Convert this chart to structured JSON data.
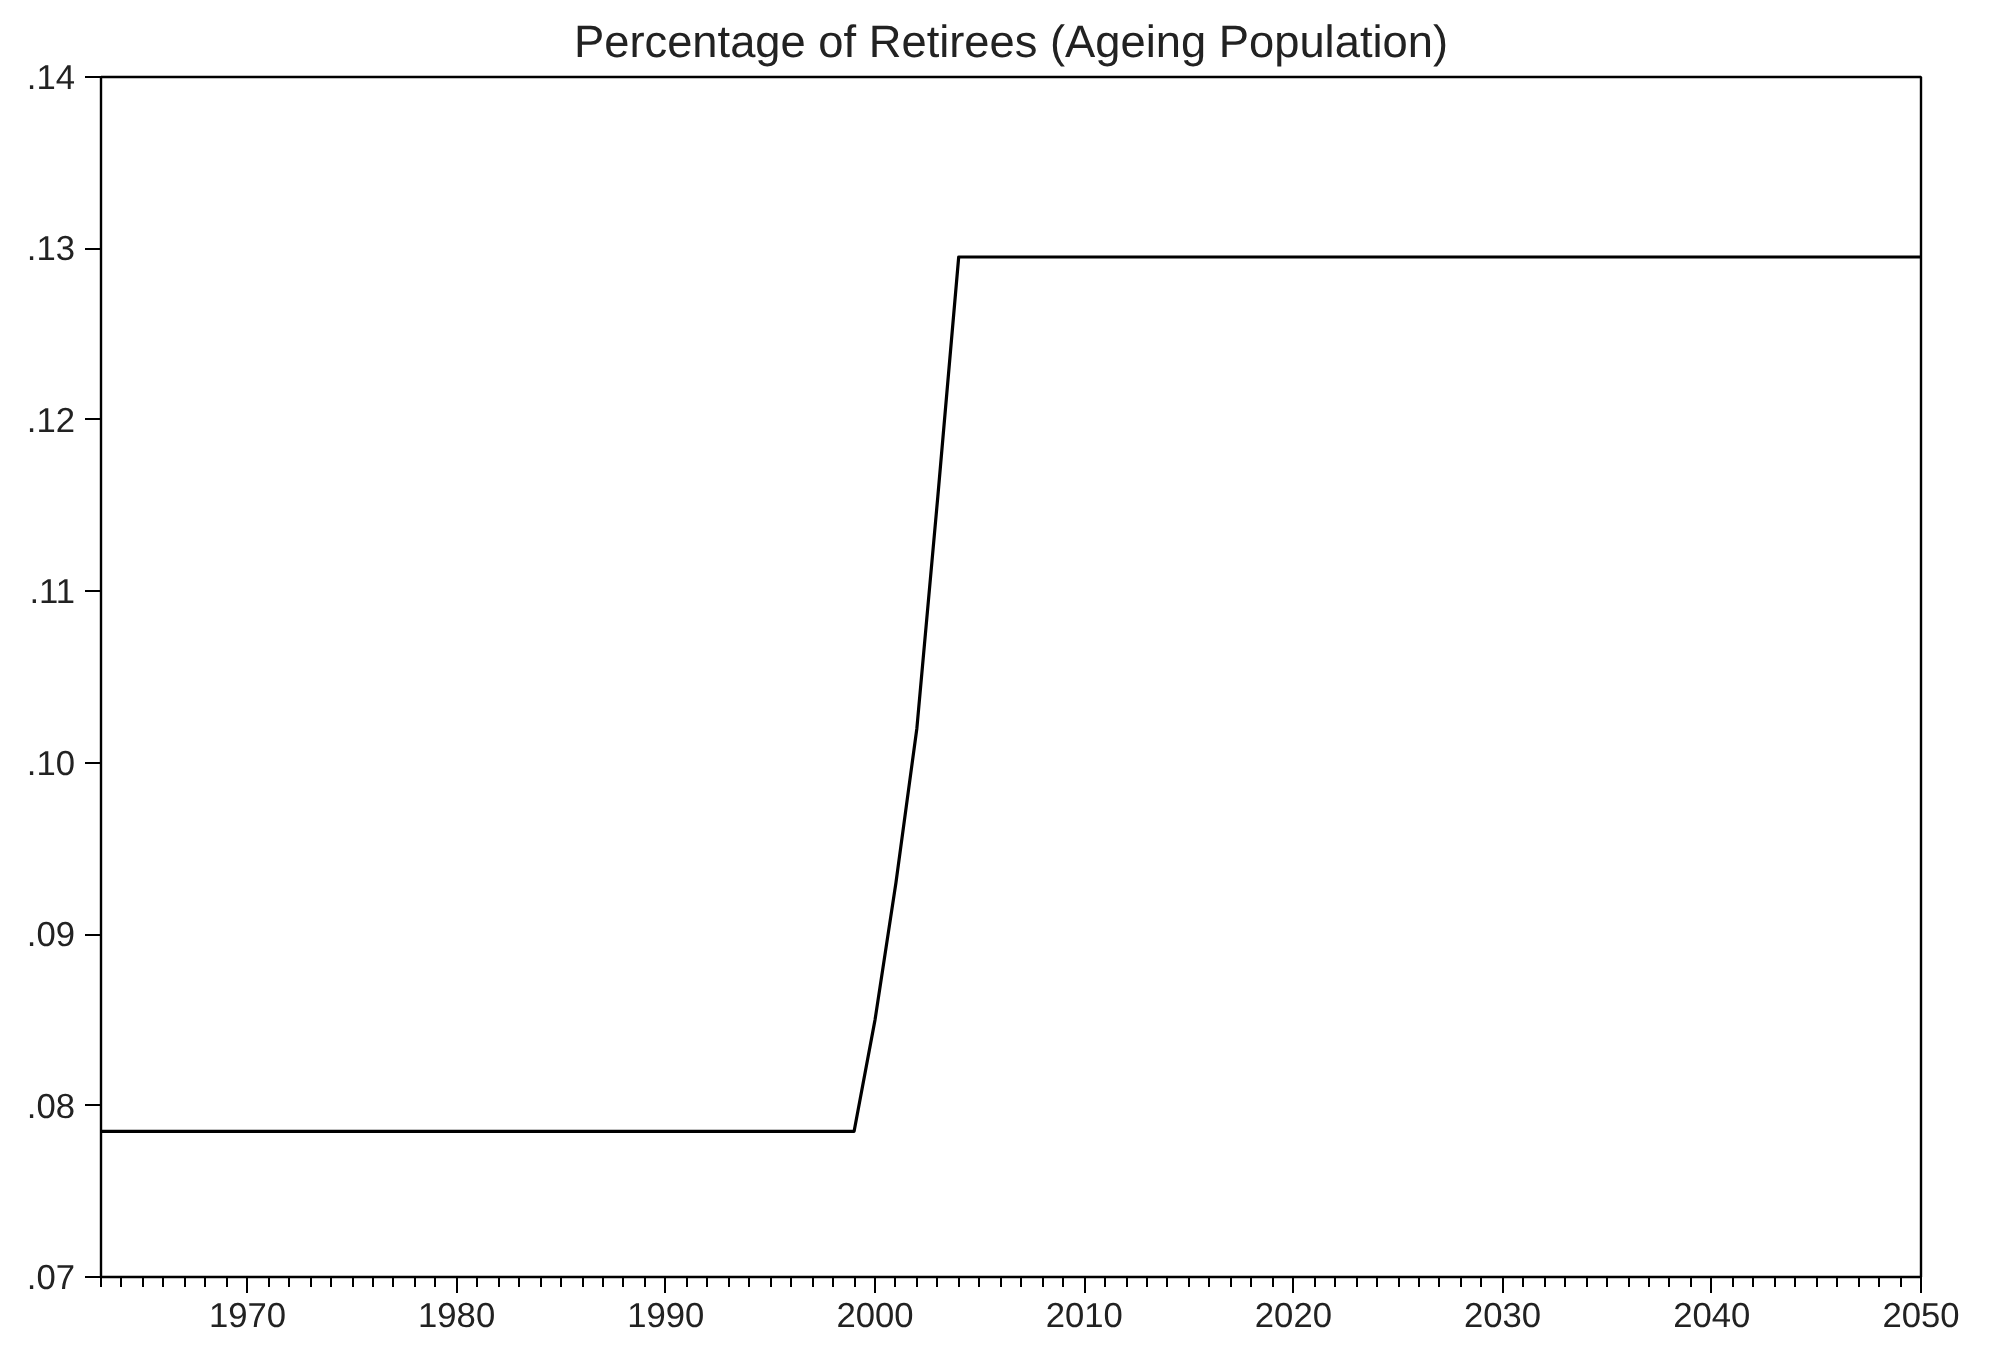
{
  "chart_data": {
    "type": "line",
    "title": "Percentage of Retirees (Ageing Population)",
    "x": [
      1963,
      1999,
      2000,
      2001,
      2002,
      2003,
      2004,
      2050
    ],
    "series": [
      {
        "color": "#000000",
        "values": [
          0.0785,
          0.0785,
          0.085,
          0.093,
          0.102,
          0.1155,
          0.1295,
          0.1295
        ]
      }
    ],
    "xlim": [
      1963,
      2050
    ],
    "ylim": [
      0.07,
      0.14
    ],
    "xticks": [
      1970,
      1980,
      1990,
      2000,
      2010,
      2020,
      2030,
      2040,
      2050
    ],
    "yticks": [
      {
        "value": 0.07,
        "label": ".07"
      },
      {
        "value": 0.08,
        "label": ".08"
      },
      {
        "value": 0.09,
        "label": ".09"
      },
      {
        "value": 0.1,
        "label": ".10"
      },
      {
        "value": 0.11,
        "label": ".11"
      },
      {
        "value": 0.12,
        "label": ".12"
      },
      {
        "value": 0.13,
        "label": ".13"
      },
      {
        "value": 0.14,
        "label": ".14"
      }
    ],
    "grid": false,
    "marker": "none",
    "line_style": "solid"
  }
}
